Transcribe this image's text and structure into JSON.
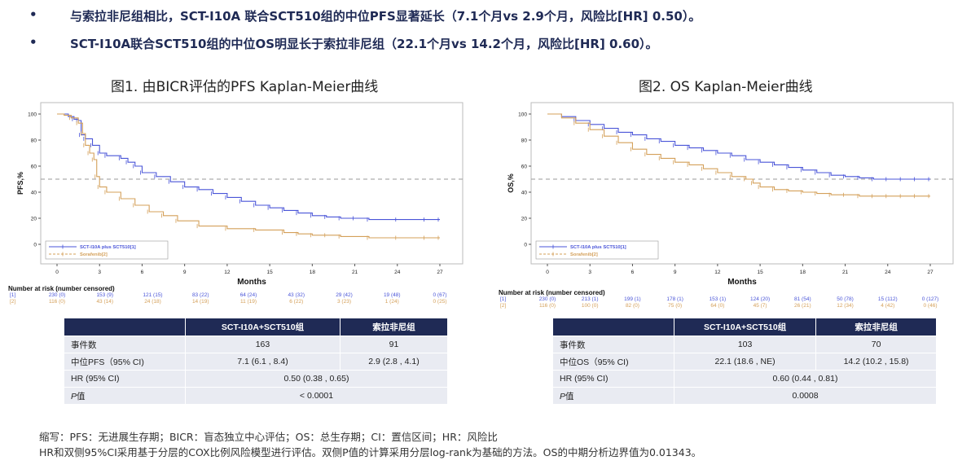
{
  "bullets": [
    "与索拉非尼组相比，SCT-I10A 联合SCT510组的中位PFS显著延长（7.1个月vs 2.9个月，风险比[HR] 0.50）。",
    "SCT-I10A联合SCT510组的中位OS明显长于索拉非尼组（22.1个月vs 14.2个月，风险比[HR] 0.60）。"
  ],
  "bullet_mark": "•",
  "colors": {
    "series1": "#4a55d8",
    "series2": "#d4a05a",
    "ref_line": "#999999",
    "table_header": "#1f2a55",
    "table_cell": "#e9ebf2",
    "text_dark": "#1f2a55"
  },
  "fig1": {
    "title": "图1. 由BICR评估的PFS Kaplan-Meier曲线",
    "risk_header": "Number at risk (number censored)",
    "risk_rows": [
      {
        "label": "[1]",
        "values": [
          "230 (0)",
          "153 (9)",
          "121 (15)",
          "83 (22)",
          "64 (24)",
          "43 (32)",
          "29 (42)",
          "19 (48)",
          "0 (67)"
        ]
      },
      {
        "label": "[2]",
        "values": [
          "116 (0)",
          "43 (14)",
          "24 (18)",
          "14 (19)",
          "11 (19)",
          "6 (22)",
          "3 (23)",
          "1 (24)",
          "0 (25)"
        ]
      }
    ],
    "table": {
      "headers": [
        "",
        "SCT-I10A+SCT510组",
        "索拉非尼组"
      ],
      "rows": [
        {
          "label": "事件数",
          "a": "163",
          "b": "91"
        },
        {
          "label": "中位PFS（95% CI)",
          "a": "7.1 (6.1 , 8.4)",
          "b": "2.9 (2.8 , 4.1)"
        },
        {
          "label": "HR (95% CI)",
          "span": "0.50 (0.38 , 0.65)"
        },
        {
          "label": "P值",
          "span": "< 0.0001"
        }
      ]
    }
  },
  "fig2": {
    "title": "图2. OS Kaplan-Meier曲线",
    "risk_header": "Number at risk (number censored)",
    "risk_rows": [
      {
        "label": "[1]",
        "values": [
          "230 (0)",
          "213 (1)",
          "199 (1)",
          "178 (1)",
          "153 (1)",
          "124 (20)",
          "81 (54)",
          "50 (78)",
          "15 (112)",
          "0 (127)"
        ]
      },
      {
        "label": "[2]",
        "values": [
          "116 (0)",
          "100 (0)",
          "82 (0)",
          "75 (0)",
          "64 (0)",
          "45 (7)",
          "26 (21)",
          "12 (34)",
          "4 (42)",
          "0 (46)"
        ]
      }
    ],
    "table": {
      "headers": [
        "",
        "SCT-I10A+SCT510组",
        "索拉非尼组"
      ],
      "rows": [
        {
          "label": "事件数",
          "a": "103",
          "b": "70"
        },
        {
          "label": "中位OS（95% CI)",
          "a": "22.1 (18.6 , NE)",
          "b": "14.2 (10.2 , 15.8)"
        },
        {
          "label": "HR (95% CI)",
          "span": "0.60 (0.44 , 0.81)"
        },
        {
          "label": "P值",
          "span": "0.0008"
        }
      ]
    }
  },
  "footnotes": [
    "缩写：PFS：无进展生存期；BICR：盲态独立中心评估；OS：总生存期；CI：置信区间；HR：风险比",
    "HR和双侧95%CI采用基于分层的COX比例风险模型进行评估。双侧P值的计算采用分层log-rank为基础的方法。OS的中期分析边界值为0.01343。"
  ],
  "chart_data": [
    {
      "type": "line",
      "title": "图1. 由BICR评估的PFS Kaplan-Meier曲线",
      "xlabel": "Months",
      "ylabel": "PFS,%",
      "xlim": [
        0,
        27
      ],
      "ylim": [
        0,
        100
      ],
      "xticks": [
        0,
        3,
        6,
        9,
        12,
        15,
        18,
        21,
        24,
        27
      ],
      "yticks": [
        0,
        20,
        40,
        60,
        80,
        100
      ],
      "reference_line_y": 50,
      "legend_position": "bottom-left",
      "series": [
        {
          "name": "SCT-I10A plus SCT510[1]",
          "x": [
            0,
            0.8,
            1.2,
            1.5,
            1.7,
            2.0,
            2.5,
            3.0,
            3.5,
            4.5,
            5.0,
            5.5,
            6.0,
            7.0,
            8.0,
            9.0,
            10.0,
            11.0,
            12.0,
            13.0,
            14.0,
            15.0,
            16.0,
            17.0,
            18.0,
            19.0,
            20.0,
            21.0,
            22.0,
            24.0,
            26.0,
            27.0
          ],
          "y": [
            100,
            98,
            96,
            95,
            84,
            81,
            76,
            70,
            68,
            66,
            63,
            60,
            55,
            52,
            48,
            44,
            42,
            39,
            36,
            33,
            30,
            28,
            26,
            24,
            22,
            21,
            20,
            20,
            19,
            19,
            19,
            19
          ]
        },
        {
          "name": "Sorafenib[2]",
          "x": [
            0,
            0.5,
            1.0,
            1.5,
            1.8,
            2.0,
            2.3,
            2.6,
            2.8,
            3.0,
            3.5,
            4.5,
            5.5,
            6.5,
            7.5,
            8.5,
            10.0,
            12.0,
            14.0,
            16.0,
            17.0,
            18.0,
            19.0,
            20.0,
            22.0,
            24.0,
            26.0,
            27.0
          ],
          "y": [
            100,
            99,
            97,
            93,
            85,
            76,
            70,
            65,
            52,
            44,
            40,
            35,
            30,
            25,
            22,
            18,
            14,
            12,
            11,
            9,
            8,
            7,
            7,
            6,
            5,
            5,
            5,
            5
          ]
        }
      ]
    },
    {
      "type": "line",
      "title": "图2. OS Kaplan-Meier曲线",
      "xlabel": "Months",
      "ylabel": "OS,%",
      "xlim": [
        0,
        27
      ],
      "ylim": [
        0,
        100
      ],
      "xticks": [
        0,
        3,
        6,
        9,
        12,
        15,
        18,
        21,
        24,
        27
      ],
      "yticks": [
        0,
        20,
        40,
        60,
        80,
        100
      ],
      "reference_line_y": 50,
      "legend_position": "bottom-left",
      "series": [
        {
          "name": "SCT-I10A plus SCT510[1]",
          "x": [
            0,
            1,
            2,
            3,
            4,
            5,
            6,
            7,
            8,
            9,
            10,
            11,
            12,
            13,
            14,
            15,
            16,
            17,
            18,
            19,
            20,
            21,
            22,
            23,
            24,
            25,
            26,
            27
          ],
          "y": [
            100,
            98,
            95,
            92,
            89,
            86,
            84,
            81,
            79,
            76,
            74,
            72,
            70,
            68,
            65,
            63,
            61,
            59,
            57,
            55,
            53,
            52,
            51,
            50,
            50,
            50,
            50,
            50
          ]
        },
        {
          "name": "Sorafenib[2]",
          "x": [
            0,
            1,
            2,
            3,
            4,
            5,
            6,
            7,
            8,
            9,
            10,
            11,
            12,
            13,
            14,
            14.5,
            15,
            16,
            17,
            18,
            19,
            20,
            21,
            22,
            23,
            24,
            25,
            26,
            27
          ],
          "y": [
            100,
            97,
            93,
            88,
            83,
            78,
            73,
            69,
            66,
            63,
            61,
            58,
            55,
            52,
            50,
            47,
            44,
            42,
            41,
            40,
            39,
            38,
            38,
            37,
            37,
            37,
            37,
            37,
            37
          ]
        }
      ]
    }
  ]
}
